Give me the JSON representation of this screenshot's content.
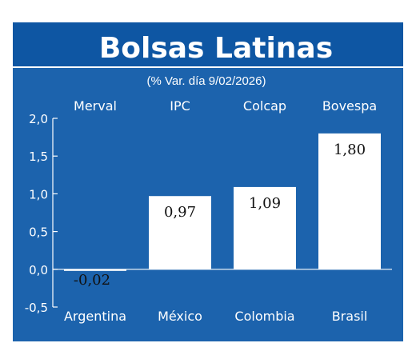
{
  "title": "Bolsas Latinas",
  "subtitle": "(% Var. día 9/02/2026)",
  "colors": {
    "background": "#1c63ad",
    "title_band": "#0e56a3",
    "bars": "#ffffff",
    "text": "#ffffff",
    "value_text": "#111111"
  },
  "chart_data": {
    "type": "bar",
    "title": "Bolsas Latinas",
    "subtitle": "(% Var. día 9/02/2026)",
    "categories": [
      "Argentina",
      "México",
      "Colombia",
      "Brasil"
    ],
    "index_names": [
      "Merval",
      "IPC",
      "Colcap",
      "Bovespa"
    ],
    "values": [
      -0.02,
      0.97,
      1.09,
      1.8
    ],
    "value_labels": [
      "-0,02",
      "0,97",
      "1,09",
      "1,80"
    ],
    "ylim": [
      -0.5,
      2.0
    ],
    "yticks": [
      2.0,
      1.5,
      1.0,
      0.5,
      0.0,
      -0.5
    ],
    "ytick_labels": [
      "2,0",
      "1,5",
      "1,0",
      "0,5",
      "0,0",
      "-0,5"
    ],
    "grid": false
  }
}
